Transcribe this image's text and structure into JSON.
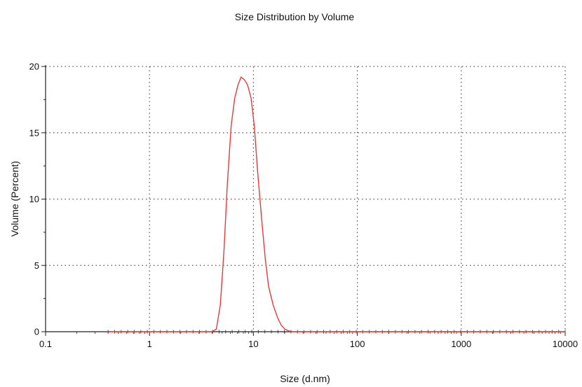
{
  "chart_data": {
    "type": "line",
    "title": "Size Distribution by Volume",
    "xlabel": "Size (d.nm)",
    "ylabel": "Volume (Percent)",
    "x_scale": "log",
    "xlim": [
      0.1,
      10000
    ],
    "ylim": [
      0,
      20
    ],
    "x_ticks": [
      0.1,
      1,
      10,
      100,
      1000,
      10000
    ],
    "x_tick_labels": [
      "0.1",
      "1",
      "10",
      "100",
      "1000",
      "10000"
    ],
    "y_ticks": [
      0,
      5,
      10,
      15,
      20
    ],
    "y_tick_labels": [
      "0",
      "5",
      "10",
      "15",
      "20"
    ],
    "grid": true,
    "colors": {
      "curve": "#e8393a",
      "axis": "#222222",
      "grid": "#555555"
    },
    "series": [
      {
        "x": [
          0.4,
          1,
          2,
          3,
          4,
          4.4,
          4.8,
          5.2,
          5.6,
          6.1,
          6.6,
          7.1,
          7.6,
          8.2,
          8.8,
          9.5,
          10.2,
          11,
          12,
          13,
          14,
          15.5,
          17,
          18.5,
          20,
          22,
          24,
          27,
          30,
          50,
          100,
          1000,
          10000
        ],
        "y": [
          0,
          0,
          0,
          0,
          0,
          0.2,
          2,
          6,
          11,
          15.5,
          17.6,
          18.6,
          19.2,
          19.0,
          18.6,
          17.6,
          15.5,
          12,
          8.5,
          5.5,
          3.4,
          2,
          1.1,
          0.5,
          0.2,
          0.05,
          0,
          0,
          0,
          0,
          0,
          0,
          0
        ]
      }
    ]
  }
}
